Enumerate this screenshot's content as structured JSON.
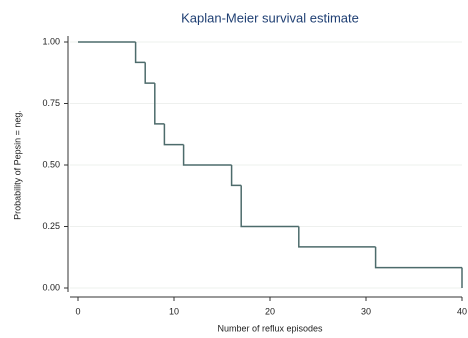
{
  "chart_data": {
    "type": "step",
    "title": "Kaplan-Meier survival estimate",
    "x_label": "Number of reflux episodes",
    "y_label": "Probability of Pepsin = neg.",
    "x": [
      0,
      6,
      7,
      8,
      9,
      11,
      16,
      17,
      23,
      31,
      40
    ],
    "values": [
      1,
      0.917,
      0.833,
      0.667,
      0.583,
      0.5,
      0.417,
      0.25,
      0.167,
      0.083,
      0
    ],
    "color": "#4d6b6b",
    "xlim": [
      0,
      40
    ],
    "ylim": [
      0,
      1
    ],
    "xticks": [
      0,
      10,
      20,
      30,
      40
    ],
    "yticks": [
      {
        "value": 0,
        "label": "0.00"
      },
      {
        "value": 0.25,
        "label": "0.25"
      },
      {
        "value": 0.5,
        "label": "0.50"
      },
      {
        "value": 0.75,
        "label": "0.75"
      },
      {
        "value": 1,
        "label": "1.00"
      }
    ],
    "grid": true
  }
}
